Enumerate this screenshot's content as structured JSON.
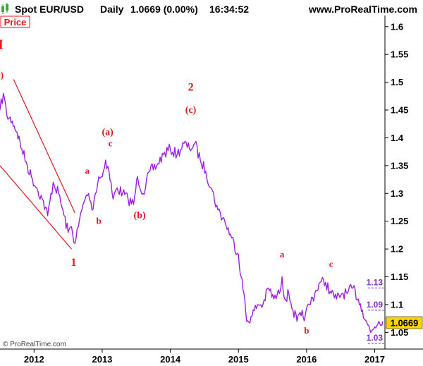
{
  "header": {
    "instrument": "Spot EUR/USD",
    "timeframe": "Daily",
    "price": "1.0669 (0.00%)",
    "time": "16:34:52",
    "site": "www.ProRealTime.com"
  },
  "price_tag": "Price",
  "last_price_label": "1.0669",
  "copyright": "© ProRealTime.com",
  "colors": {
    "series": "#9b1fe0",
    "wave_labels": "#e8141e",
    "channel": "#e8141e",
    "level_lines": "#7b2fc9",
    "last_price_bg": "#ffd200"
  },
  "chart_data": {
    "type": "line",
    "title": "Spot EUR/USD Daily",
    "ylim": [
      1.02,
      1.62
    ],
    "y_ticks": [
      1.05,
      1.1,
      1.15,
      1.2,
      1.25,
      1.3,
      1.35,
      1.4,
      1.45,
      1.5,
      1.55,
      1.6
    ],
    "y_tick_labels": [
      "1.05",
      "1.1",
      "1.15",
      "1.2",
      "1.25",
      "1.3",
      "1.35",
      "1.4",
      "1.45",
      "1.5",
      "1.55",
      "1.6"
    ],
    "x_range": [
      2011.5,
      2017.15
    ],
    "x_ticks": [
      2012,
      2013,
      2014,
      2015,
      2016,
      2017
    ],
    "x_tick_labels": [
      "2012",
      "2013",
      "2014",
      "2015",
      "2016",
      "2017"
    ],
    "series": [
      {
        "x": [
          2011.5,
          2011.55,
          2011.6,
          2011.68,
          2011.75,
          2011.82,
          2011.9,
          2011.96,
          2012.04,
          2012.12,
          2012.2,
          2012.28,
          2012.36,
          2012.44,
          2012.5,
          2012.55,
          2012.6,
          2012.65,
          2012.7,
          2012.75,
          2012.8,
          2012.85,
          2012.9,
          2012.95,
          2013.0,
          2013.05,
          2013.1,
          2013.16,
          2013.22,
          2013.3,
          2013.38,
          2013.46,
          2013.52,
          2013.6,
          2013.7,
          2013.8,
          2013.9,
          2014.0,
          2014.1,
          2014.2,
          2014.28,
          2014.36,
          2014.44,
          2014.52,
          2014.6,
          2014.7,
          2014.8,
          2014.9,
          2015.0,
          2015.04,
          2015.08,
          2015.12,
          2015.2,
          2015.28,
          2015.36,
          2015.44,
          2015.52,
          2015.6,
          2015.64,
          2015.68,
          2015.74,
          2015.8,
          2015.86,
          2015.92,
          2015.98,
          2016.04,
          2016.12,
          2016.2,
          2016.28,
          2016.36,
          2016.44,
          2016.52,
          2016.6,
          2016.68,
          2016.76,
          2016.82,
          2016.88,
          2016.94,
          2017.0,
          2017.06,
          2017.12
        ],
        "y": [
          1.45,
          1.48,
          1.44,
          1.43,
          1.41,
          1.38,
          1.35,
          1.33,
          1.31,
          1.29,
          1.26,
          1.32,
          1.3,
          1.26,
          1.23,
          1.24,
          1.21,
          1.24,
          1.27,
          1.29,
          1.3,
          1.27,
          1.3,
          1.33,
          1.33,
          1.36,
          1.34,
          1.29,
          1.31,
          1.3,
          1.29,
          1.28,
          1.33,
          1.3,
          1.34,
          1.35,
          1.37,
          1.38,
          1.37,
          1.39,
          1.38,
          1.39,
          1.36,
          1.34,
          1.31,
          1.27,
          1.25,
          1.22,
          1.19,
          1.15,
          1.12,
          1.07,
          1.08,
          1.1,
          1.1,
          1.13,
          1.11,
          1.12,
          1.15,
          1.11,
          1.12,
          1.09,
          1.07,
          1.08,
          1.08,
          1.1,
          1.12,
          1.14,
          1.14,
          1.12,
          1.11,
          1.12,
          1.12,
          1.13,
          1.11,
          1.09,
          1.07,
          1.05,
          1.06,
          1.07,
          1.07
        ]
      }
    ],
    "wave_labels": [
      {
        "text": "II",
        "x": 2011.47,
        "y": 1.56,
        "size": 20
      },
      {
        "text": "c)",
        "x": 2011.5,
        "y": 1.508,
        "size": 13
      },
      {
        "text": "1",
        "x": 2012.58,
        "y": 1.17,
        "size": 16
      },
      {
        "text": "a",
        "x": 2012.78,
        "y": 1.335,
        "size": 13
      },
      {
        "text": "b",
        "x": 2012.95,
        "y": 1.245,
        "size": 13
      },
      {
        "text": "(a)",
        "x": 2013.08,
        "y": 1.405,
        "size": 14
      },
      {
        "text": "c",
        "x": 2013.12,
        "y": 1.385,
        "size": 13
      },
      {
        "text": "(b)",
        "x": 2013.55,
        "y": 1.255,
        "size": 14
      },
      {
        "text": "2",
        "x": 2014.3,
        "y": 1.485,
        "size": 16
      },
      {
        "text": "(c)",
        "x": 2014.3,
        "y": 1.445,
        "size": 14
      },
      {
        "text": "a",
        "x": 2015.64,
        "y": 1.185,
        "size": 13
      },
      {
        "text": "b",
        "x": 2016.0,
        "y": 1.048,
        "size": 13
      },
      {
        "text": "c",
        "x": 2016.36,
        "y": 1.168,
        "size": 13
      }
    ],
    "channel_lines": [
      {
        "x1": 2011.7,
        "y1": 1.505,
        "x2": 2012.6,
        "y2": 1.265
      },
      {
        "x1": 2011.5,
        "y1": 1.35,
        "x2": 2012.55,
        "y2": 1.2
      }
    ],
    "levels": [
      {
        "label": "1.13",
        "y": 1.13,
        "x_start": 2016.9
      },
      {
        "label": "1.09",
        "y": 1.09,
        "x_start": 2016.9
      },
      {
        "label": "1.03",
        "y": 1.03,
        "x_start": 2016.9
      }
    ],
    "last_price": 1.0669
  }
}
